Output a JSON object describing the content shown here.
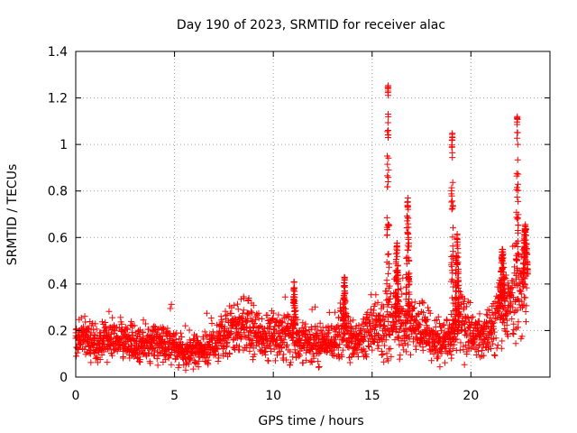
{
  "chart_data": {
    "type": "scatter",
    "title": "Day 190 of 2023, SRMTID for receiver alac",
    "xlabel": "GPS time / hours",
    "ylabel": "SRMTID / TECUs",
    "xlim": [
      0,
      24
    ],
    "ylim": [
      0,
      1.4
    ],
    "x_ticks": [
      "0",
      "5",
      "10",
      "15",
      "20"
    ],
    "y_ticks": [
      "0",
      "0.2",
      "0.4",
      "0.6",
      "0.8",
      "1",
      "1.2",
      "1.4"
    ],
    "grid": true,
    "marker": "plus",
    "series": [
      {
        "name": "SRMTID",
        "color": "#ff0000",
        "sampling_hours": 0.04,
        "baseline": [
          [
            0,
            0.15
          ],
          [
            0.5,
            0.17
          ],
          [
            1,
            0.14
          ],
          [
            1.5,
            0.15
          ],
          [
            2,
            0.16
          ],
          [
            2.5,
            0.15
          ],
          [
            3,
            0.14
          ],
          [
            3.5,
            0.14
          ],
          [
            4,
            0.15
          ],
          [
            4.5,
            0.15
          ],
          [
            5,
            0.13
          ],
          [
            5.5,
            0.11
          ],
          [
            6,
            0.11
          ],
          [
            6.5,
            0.12
          ],
          [
            7,
            0.14
          ],
          [
            7.5,
            0.17
          ],
          [
            8,
            0.21
          ],
          [
            8.5,
            0.22
          ],
          [
            9,
            0.19
          ],
          [
            9.5,
            0.17
          ],
          [
            10,
            0.19
          ],
          [
            10.5,
            0.18
          ],
          [
            11,
            0.2
          ],
          [
            11.5,
            0.16
          ],
          [
            12,
            0.14
          ],
          [
            12.5,
            0.15
          ],
          [
            13,
            0.15
          ],
          [
            13.5,
            0.2
          ],
          [
            14,
            0.16
          ],
          [
            14.5,
            0.17
          ],
          [
            15,
            0.21
          ],
          [
            15.5,
            0.22
          ],
          [
            16,
            0.26
          ],
          [
            16.5,
            0.22
          ],
          [
            17,
            0.23
          ],
          [
            17.5,
            0.19
          ],
          [
            18,
            0.16
          ],
          [
            18.5,
            0.15
          ],
          [
            19,
            0.18
          ],
          [
            19.5,
            0.23
          ],
          [
            20,
            0.19
          ],
          [
            20.5,
            0.17
          ],
          [
            21,
            0.2
          ],
          [
            21.5,
            0.28
          ],
          [
            22,
            0.32
          ],
          [
            22.5,
            0.35
          ],
          [
            22.8,
            0.42
          ]
        ],
        "peaks": [
          {
            "x": 11.05,
            "y": 0.41,
            "width": 0.12
          },
          {
            "x": 13.6,
            "y": 0.43,
            "width": 0.15
          },
          {
            "x": 15.8,
            "y": 1.26,
            "width": 0.13
          },
          {
            "x": 16.25,
            "y": 0.58,
            "width": 0.2
          },
          {
            "x": 16.8,
            "y": 0.77,
            "width": 0.2
          },
          {
            "x": 19.05,
            "y": 1.05,
            "width": 0.13
          },
          {
            "x": 19.3,
            "y": 0.62,
            "width": 0.22
          },
          {
            "x": 21.6,
            "y": 0.55,
            "width": 0.25
          },
          {
            "x": 22.35,
            "y": 1.13,
            "width": 0.12
          },
          {
            "x": 22.75,
            "y": 0.66,
            "width": 0.25
          }
        ]
      }
    ]
  }
}
